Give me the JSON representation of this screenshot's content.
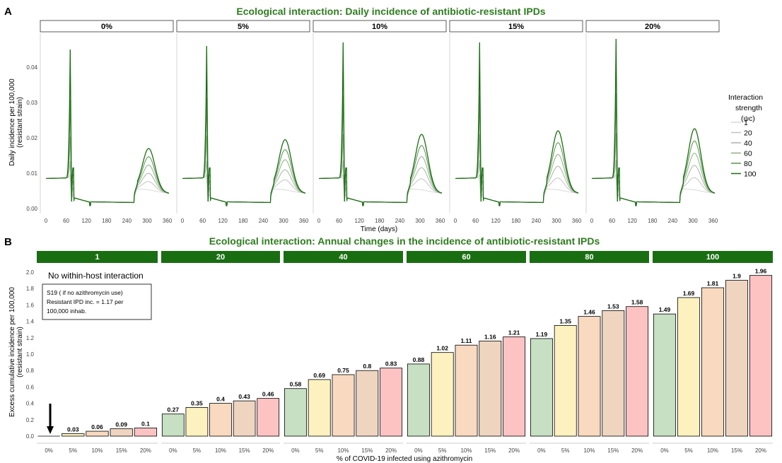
{
  "panel_a": {
    "letter": "A",
    "title": "Ecological interaction: Daily incidence of antibiotic-resistant IPDs",
    "ylabel_line1": "Daily incidence per 100,000",
    "ylabel_line2": "(resistant strain)",
    "xlabel": "Time (days)",
    "legend_title_line1": "Interaction",
    "legend_title_line2": "strength",
    "legend_title_line3": "(ψc)"
  },
  "panel_b": {
    "letter": "B",
    "title": "Ecological interaction: Annual changes in the incidence of antibiotic-resistant IPDs",
    "ylabel_line1": "Excess cumulative incidence per 100,000",
    "ylabel_line2": "(resistant strain)",
    "xlabel": "% of COVID-19 infected using azithromycin",
    "annotation_title": "No within-host interaction",
    "annotation_box_line1": "S19 ( if no azithromycin use)",
    "annotation_box_line2": "Resistant IPD inc. = 1.17 per",
    "annotation_box_line3": "100,000 inhab."
  },
  "chart_data": [
    {
      "type": "line",
      "title": "Ecological interaction: Daily incidence of antibiotic-resistant IPDs",
      "xlabel": "Time (days)",
      "ylabel": "Daily incidence per 100,000 (resistant strain)",
      "facets": [
        "0%",
        "5%",
        "10%",
        "15%",
        "20%"
      ],
      "xlim": [
        0,
        365
      ],
      "ylim": [
        0,
        0.045
      ],
      "x_ticks": [
        "0",
        "60",
        "120",
        "180",
        "240",
        "300",
        "360"
      ],
      "y_ticks": [
        "0.00",
        "0.01",
        "0.02",
        "0.03",
        "0.04"
      ],
      "legend_title": "Interaction strength (ψc)",
      "legend_position": "right",
      "series_names": [
        "1",
        "20",
        "40",
        "60",
        "80",
        "100"
      ],
      "series_colors": [
        "#d9d9d9",
        "#c3c3c3",
        "#a9b5a6",
        "#8fae88",
        "#54964a",
        "#1a6e12"
      ],
      "shape_notes": {
        "baseline": 0.0085,
        "first_peak_day": 72,
        "first_peak_values": [
          0.045,
          0.046,
          0.047,
          0.047,
          0.048
        ],
        "trough": 0.0018,
        "second_peak_day": 305,
        "second_peak_max_by_facet": [
          0.0172,
          0.0197,
          0.0212,
          0.0222,
          0.0228
        ]
      }
    },
    {
      "type": "bar",
      "title": "Ecological interaction: Annual changes in the incidence of antibiotic-resistant IPDs",
      "xlabel": "% of COVID-19 infected using azithromycin",
      "ylabel": "Excess cumulative incidence per 100,000 (resistant strain)",
      "ylim": [
        0,
        2.0
      ],
      "y_ticks": [
        "0.0",
        "0.2",
        "0.4",
        "0.6",
        "0.8",
        "1.0",
        "1.2",
        "1.4",
        "1.6",
        "1.8",
        "2.0"
      ],
      "categories": [
        "0%",
        "5%",
        "10%",
        "15%",
        "20%"
      ],
      "category_colors": [
        "#c7dfc2",
        "#fdf2bf",
        "#f9d9bf",
        "#efd5c0",
        "#fdc3c3"
      ],
      "facets": [
        {
          "label": "1",
          "values": [
            0,
            0.03,
            0.06,
            0.09,
            0.1
          ],
          "labels": [
            "",
            "0.03",
            "0.06",
            "0.09",
            "0.1"
          ]
        },
        {
          "label": "20",
          "values": [
            0.27,
            0.35,
            0.4,
            0.43,
            0.46
          ],
          "labels": [
            "0.27",
            "0.35",
            "0.4",
            "0.43",
            "0.46"
          ]
        },
        {
          "label": "40",
          "values": [
            0.58,
            0.69,
            0.75,
            0.8,
            0.83
          ],
          "labels": [
            "0.58",
            "0.69",
            "0.75",
            "0.8",
            "0.83"
          ]
        },
        {
          "label": "60",
          "values": [
            0.88,
            1.02,
            1.11,
            1.16,
            1.21
          ],
          "labels": [
            "0.88",
            "1.02",
            "1.11",
            "1.16",
            "1.21"
          ]
        },
        {
          "label": "80",
          "values": [
            1.19,
            1.35,
            1.46,
            1.53,
            1.58
          ],
          "labels": [
            "1.19",
            "1.35",
            "1.46",
            "1.53",
            "1.58"
          ]
        },
        {
          "label": "100",
          "values": [
            1.49,
            1.69,
            1.81,
            1.9,
            1.96
          ],
          "labels": [
            "1.49",
            "1.69",
            "1.81",
            "1.9",
            "1.96"
          ]
        }
      ],
      "facet_strip_color": "#1a6e12"
    }
  ]
}
